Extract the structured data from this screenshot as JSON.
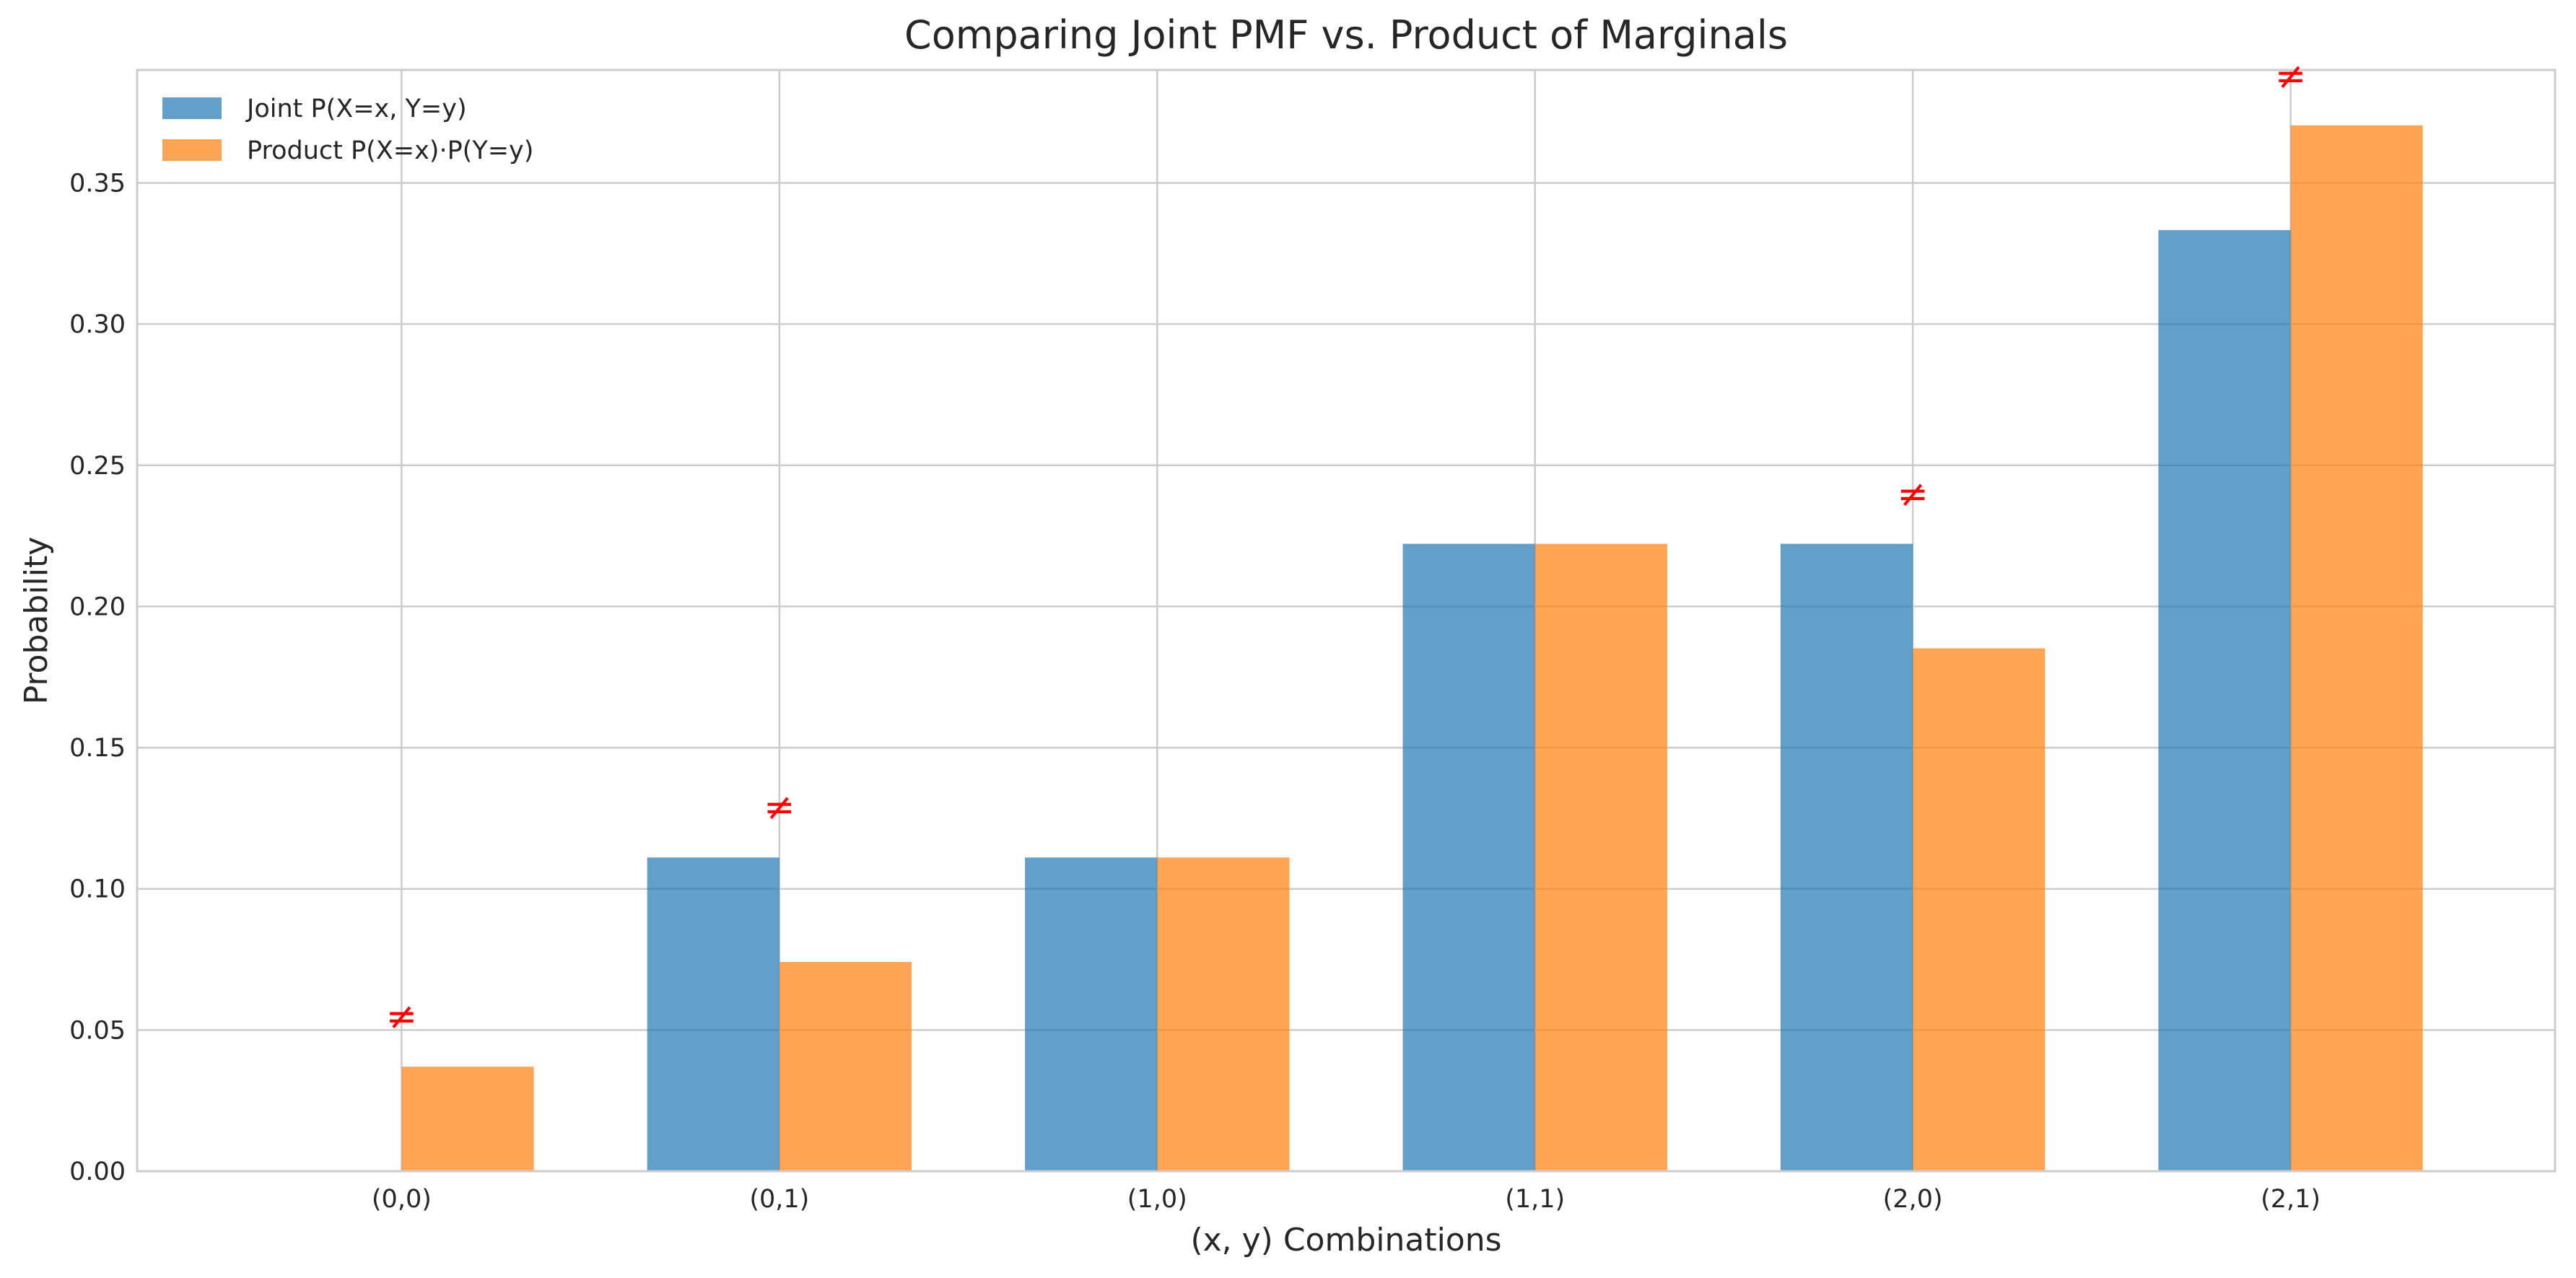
{
  "chart_data": {
    "type": "bar",
    "title": "Comparing Joint PMF vs. Product of Marginals",
    "xlabel": "(x, y) Combinations",
    "ylabel": "Probability",
    "categories": [
      "(0,0)",
      "(0,1)",
      "(1,0)",
      "(1,1)",
      "(2,0)",
      "(2,1)"
    ],
    "series": [
      {
        "name": "Joint P(X=x, Y=y)",
        "color": "#1f77b4",
        "values": [
          0.0,
          0.1111,
          0.1111,
          0.2222,
          0.2222,
          0.3333
        ]
      },
      {
        "name": "Product P(X=x)·P(Y=y)",
        "color": "#ff7f0e",
        "values": [
          0.037,
          0.0741,
          0.1111,
          0.2222,
          0.1852,
          0.3704
        ]
      }
    ],
    "ylim": [
      0,
      0.39
    ],
    "yticks": [
      "0.00",
      "0.05",
      "0.10",
      "0.15",
      "0.20",
      "0.25",
      "0.30",
      "0.35"
    ],
    "grid": true,
    "legend_position": "top-left",
    "annotations": [
      {
        "category": "(0,0)",
        "text": "≠",
        "y": 0.055
      },
      {
        "category": "(0,1)",
        "text": "≠",
        "y": 0.129
      },
      {
        "category": "(2,0)",
        "text": "≠",
        "y": 0.24
      },
      {
        "category": "(2,1)",
        "text": "≠",
        "y": 0.388
      }
    ],
    "annotation_color": "#ff0000"
  }
}
